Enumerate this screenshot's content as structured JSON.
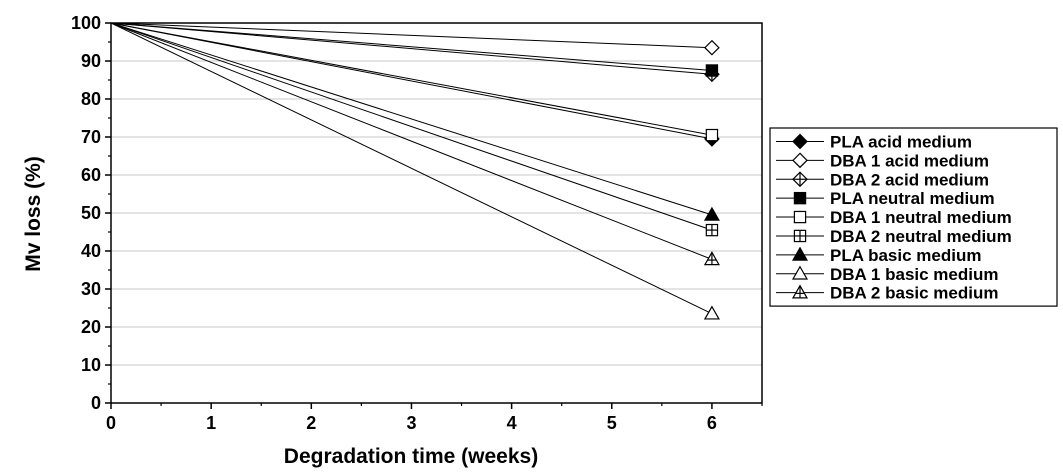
{
  "chart_data": {
    "type": "line",
    "title": "",
    "xlabel": "Degradation time (weeks)",
    "ylabel": "Mv loss (%)",
    "xlim": [
      0,
      6.5
    ],
    "ylim": [
      0,
      100
    ],
    "xticks": [
      "0",
      "1",
      "2",
      "3",
      "4",
      "5",
      "6"
    ],
    "yticks": [
      "0",
      "10",
      "20",
      "30",
      "40",
      "50",
      "60",
      "70",
      "80",
      "90",
      "100"
    ],
    "grid": "horizontal",
    "legend_position": "right",
    "x": [
      0,
      6
    ],
    "series": [
      {
        "name": "PLA acid medium",
        "marker": "diamond-filled",
        "values": [
          100,
          69.5
        ]
      },
      {
        "name": "DBA 1 acid medium",
        "marker": "diamond-open",
        "values": [
          100,
          93.5
        ]
      },
      {
        "name": "DBA 2 acid medium",
        "marker": "diamond-cross",
        "values": [
          100,
          86.5
        ]
      },
      {
        "name": "PLA neutral medium",
        "marker": "square-filled",
        "values": [
          100,
          87.5
        ]
      },
      {
        "name": "DBA 1 neutral medium",
        "marker": "square-open",
        "values": [
          100,
          70.5
        ]
      },
      {
        "name": "DBA 2 neutral medium",
        "marker": "square-cross",
        "values": [
          100,
          45.5
        ]
      },
      {
        "name": "PLA basic medium",
        "marker": "triangle-filled",
        "values": [
          100,
          49.5
        ]
      },
      {
        "name": "DBA 1 basic medium",
        "marker": "triangle-open",
        "values": [
          100,
          23.5
        ]
      },
      {
        "name": "DBA 2 basic medium",
        "marker": "triangle-cross",
        "values": [
          100,
          37.8
        ]
      }
    ]
  }
}
